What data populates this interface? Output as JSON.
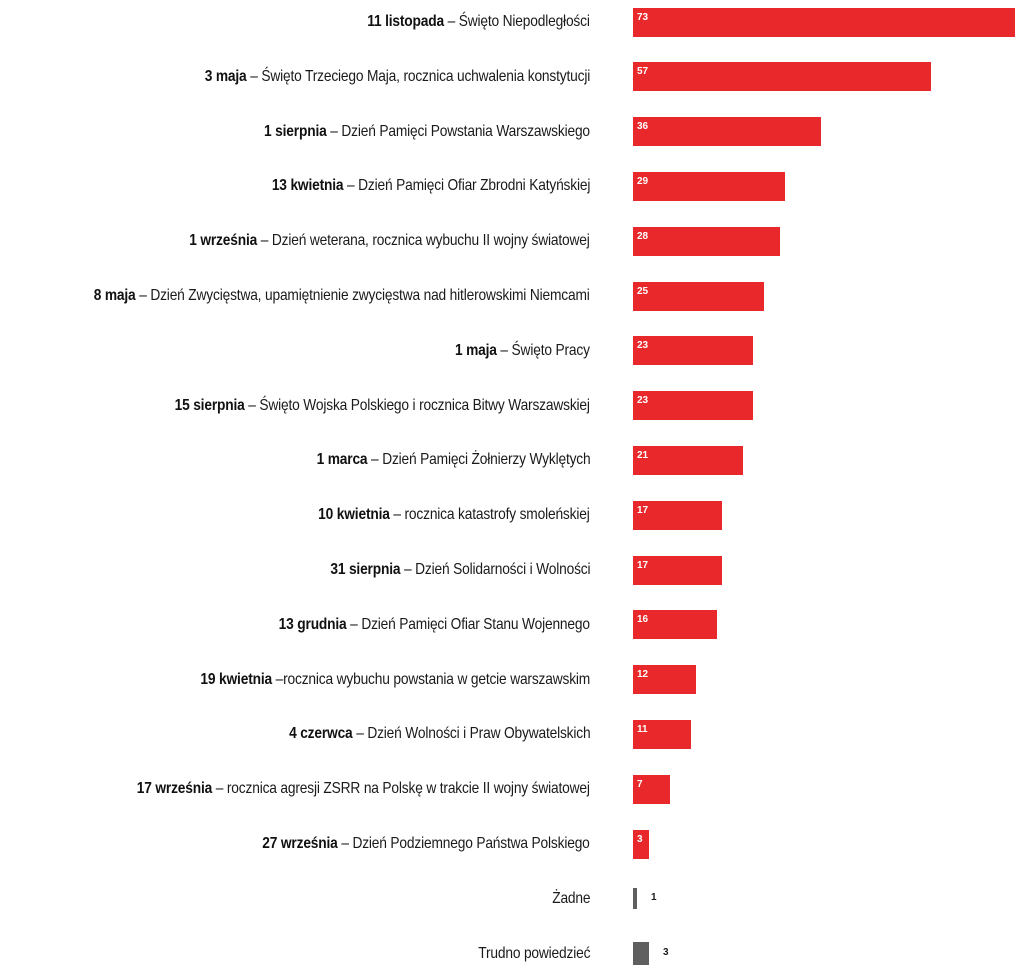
{
  "chart_data": {
    "type": "bar",
    "orientation": "horizontal",
    "title": "",
    "xlabel": "",
    "ylabel": "",
    "xlim": [
      0,
      73
    ],
    "grid": false,
    "legend": "none",
    "colors": {
      "main": "#e8282b",
      "other": "#5f5f5f",
      "label_inside": "#ffffff",
      "label_outside": "#1a1a1a"
    },
    "categories": [
      {
        "bold": "11 listopada",
        "rest": " – Święto Niepodległości"
      },
      {
        "bold": "3 maja",
        "rest": " – Święto Trzeciego Maja, rocznica uchwalenia konstytucji"
      },
      {
        "bold": "1 sierpnia",
        "rest": " – Dzień Pamięci Powstania Warszawskiego"
      },
      {
        "bold": "13 kwietnia",
        "rest": " – Dzień Pamięci Ofiar Zbrodni Katyńskiej"
      },
      {
        "bold": "1 września",
        "rest": " – Dzień weterana, rocznica wybuchu II wojny światowej"
      },
      {
        "bold": "8 maja",
        "rest": " – Dzień Zwycięstwa, upamiętnienie zwycięstwa nad hitlerowskimi Niemcami"
      },
      {
        "bold": "1 maja",
        "rest": " – Święto Pracy"
      },
      {
        "bold": "15 sierpnia",
        "rest": " – Święto Wojska Polskiego i rocznica Bitwy Warszawskiej"
      },
      {
        "bold": "1 marca",
        "rest": " – Dzień Pamięci Żołnierzy Wyklętych"
      },
      {
        "bold": "10 kwietnia",
        "rest": " – rocznica katastrofy smoleńskiej"
      },
      {
        "bold": "31 sierpnia",
        "rest": " – Dzień Solidarności i Wolności"
      },
      {
        "bold": "13 grudnia",
        "rest": " – Dzień Pamięci Ofiar Stanu Wojennego"
      },
      {
        "bold": "19 kwietnia",
        "rest": " –rocznica wybuchu powstania w getcie warszawskim"
      },
      {
        "bold": "4 czerwca",
        "rest": " – Dzień Wolności i Praw Obywatelskich"
      },
      {
        "bold": "17 września",
        "rest": " – rocznica agresji ZSRR na Polskę w trakcie II wojny światowej"
      },
      {
        "bold": "27 września",
        "rest": " – Dzień Podziemnego Państwa Polskiego"
      },
      {
        "bold": "",
        "rest": "Żadne"
      },
      {
        "bold": "",
        "rest": "Trudno powiedzieć"
      }
    ],
    "values": [
      73,
      57,
      36,
      29,
      28,
      25,
      23,
      23,
      21,
      17,
      17,
      16,
      12,
      11,
      7,
      3,
      1,
      3
    ],
    "bar_colors": [
      "main",
      "main",
      "main",
      "main",
      "main",
      "main",
      "main",
      "main",
      "main",
      "main",
      "main",
      "main",
      "main",
      "main",
      "main",
      "main",
      "other",
      "other"
    ],
    "value_label_position": [
      "inside",
      "inside",
      "inside",
      "inside",
      "inside",
      "inside",
      "inside",
      "inside",
      "inside",
      "inside",
      "inside",
      "inside",
      "inside",
      "inside",
      "inside",
      "inside",
      "outside",
      "outside"
    ]
  }
}
